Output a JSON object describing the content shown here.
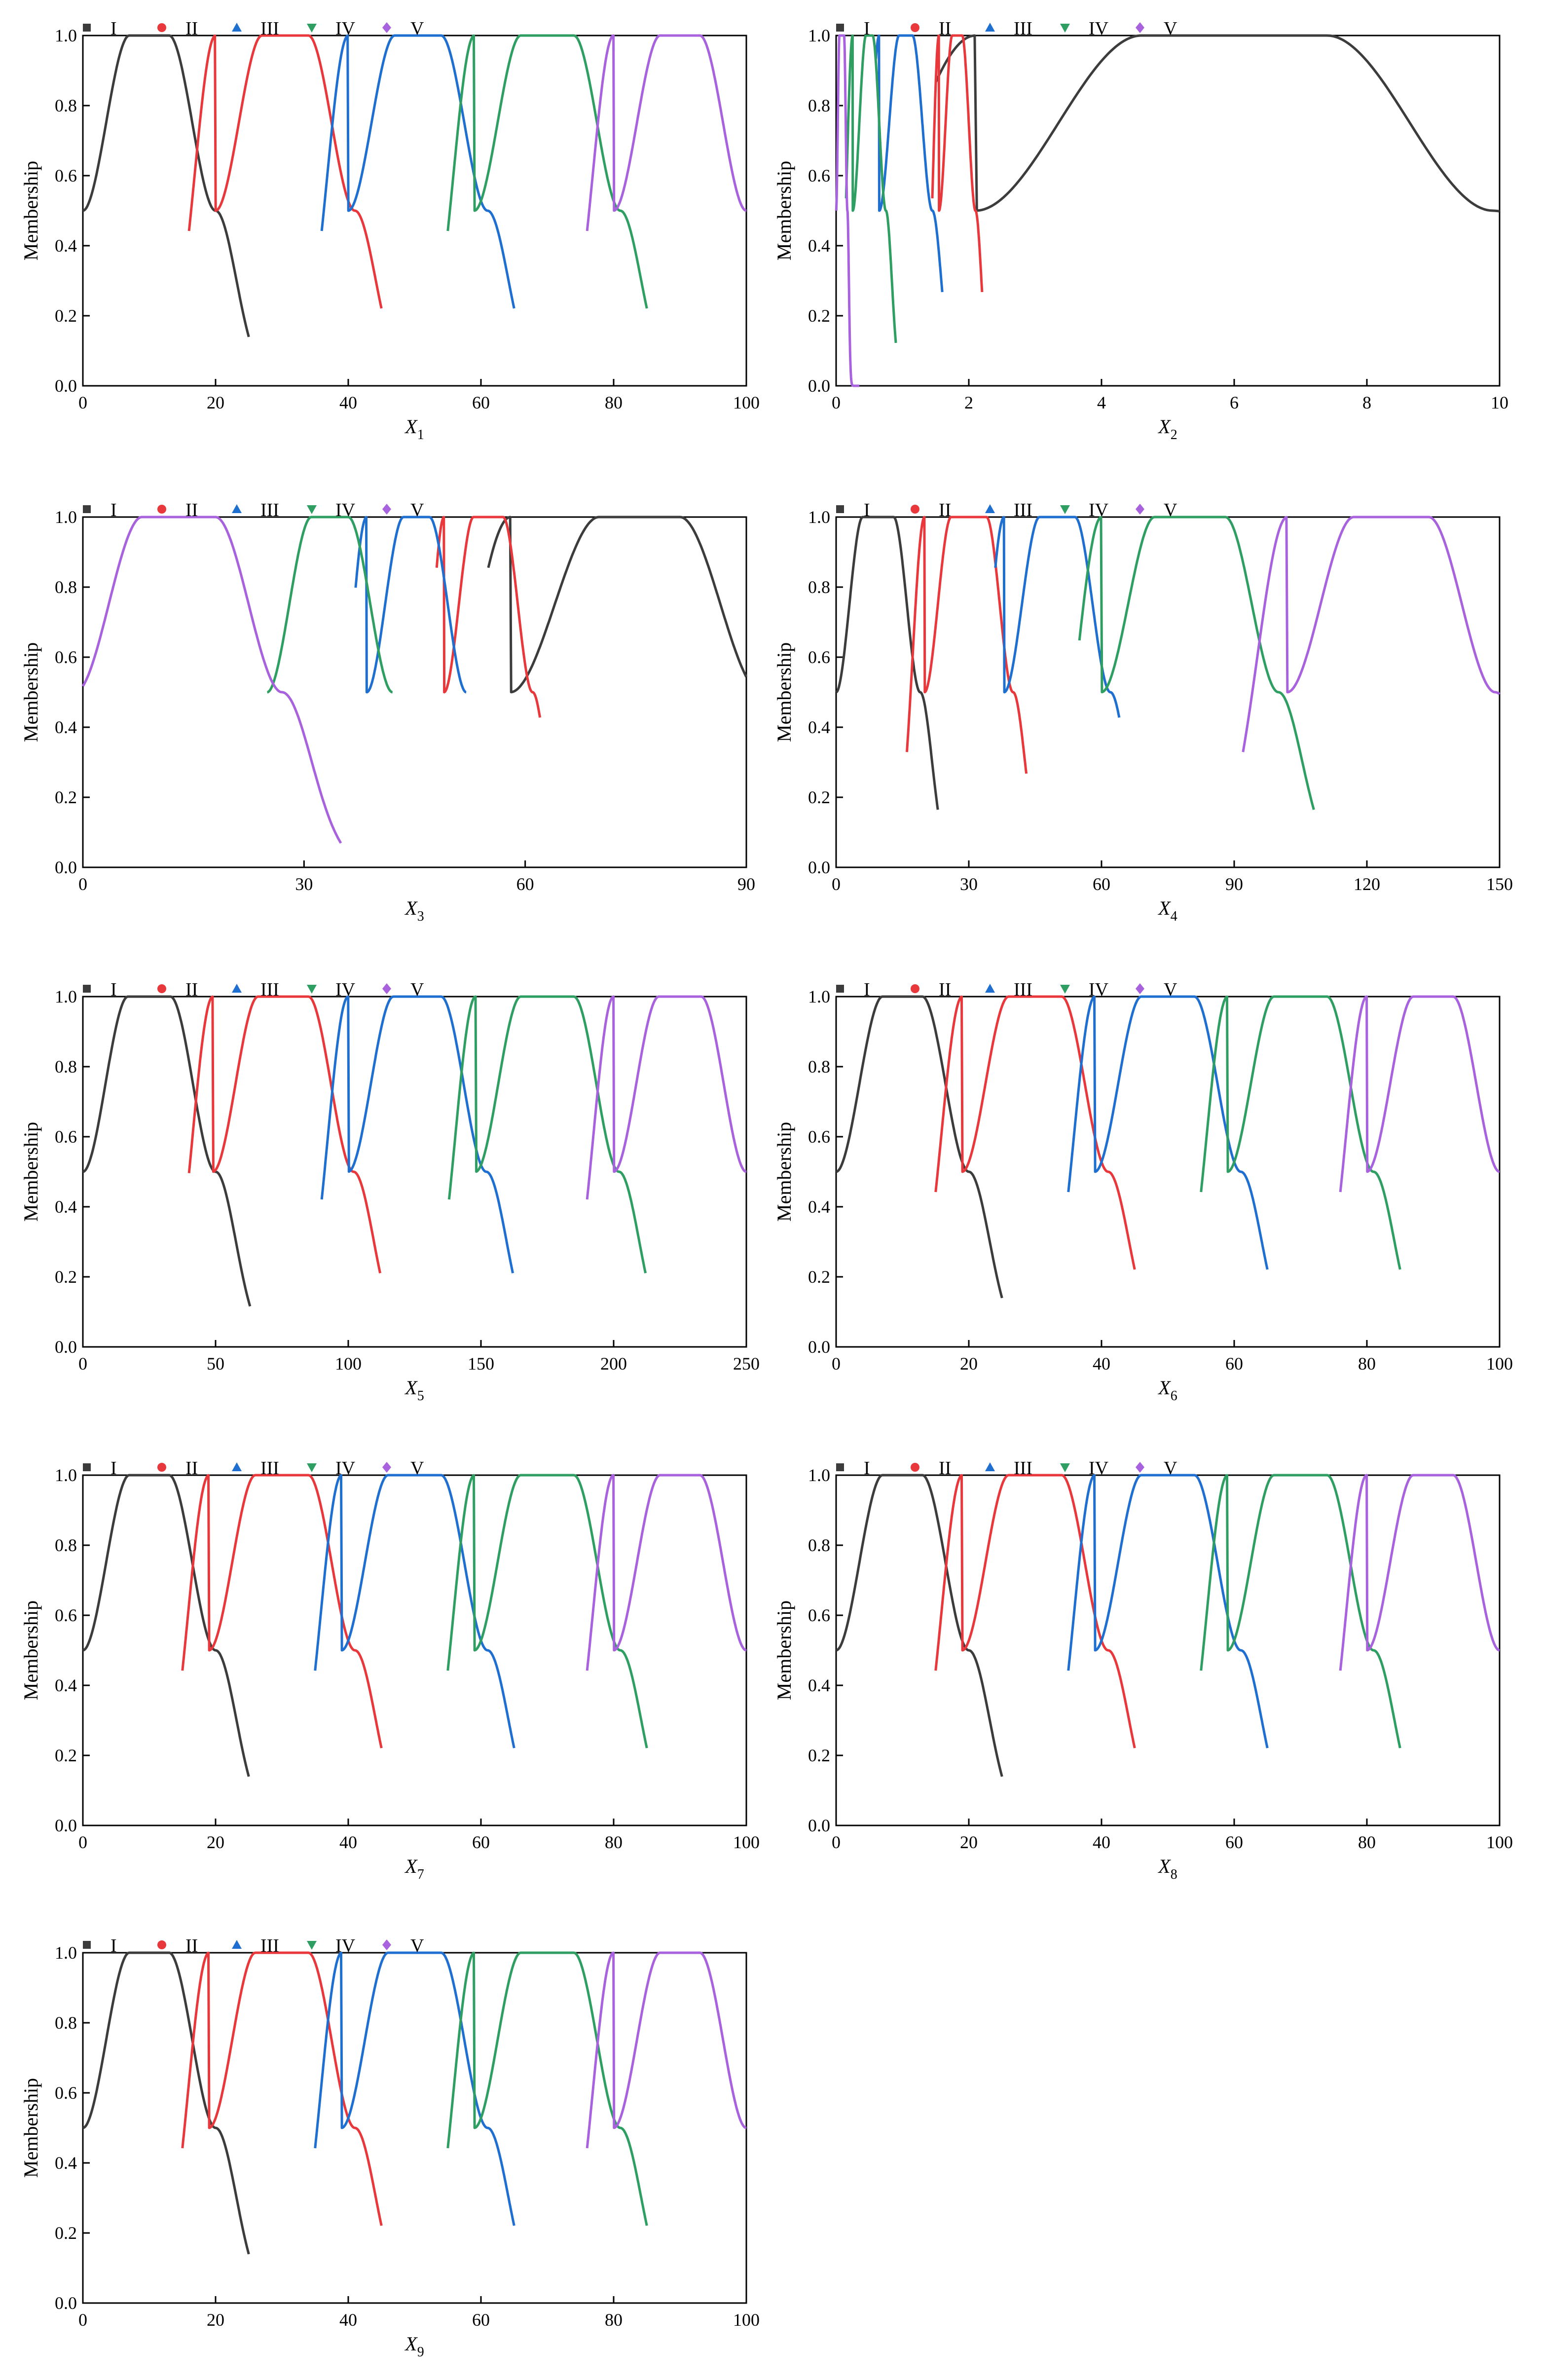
{
  "figure": {
    "ylabel": "Membership",
    "legend_placement": "top-left",
    "series_meta": [
      {
        "name": "I",
        "color": "#3c3c3c",
        "marker": "square"
      },
      {
        "name": "II",
        "color": "#e8383b",
        "marker": "circle"
      },
      {
        "name": "III",
        "color": "#1f6fd1",
        "marker": "triangle-up"
      },
      {
        "name": "IV",
        "color": "#2e9e62",
        "marker": "triangle-down"
      },
      {
        "name": "V",
        "color": "#a862dd",
        "marker": "diamond"
      }
    ]
  },
  "chart_data": [
    {
      "type": "line",
      "xlabel_main": "X",
      "xlabel_sub": "1",
      "ylabel": "Membership",
      "xlim": [
        0,
        100
      ],
      "ylim": [
        0,
        1.0
      ],
      "xticks": [
        0,
        20,
        40,
        60,
        80,
        100
      ],
      "yticks": [
        0,
        0.2,
        0.4,
        0.6,
        0.8,
        1.0
      ],
      "series": [
        {
          "name": "I",
          "a": 7,
          "b": 13,
          "wl": 7,
          "wr": 7,
          "xmin": 0,
          "xmax": 25
        },
        {
          "name": "II",
          "a": 27,
          "b": 34,
          "wl": 7,
          "wr": 7,
          "xmin": 16,
          "xmax": 45
        },
        {
          "name": "III",
          "a": 47,
          "b": 54,
          "wl": 7,
          "wr": 7,
          "xmin": 36,
          "xmax": 65
        },
        {
          "name": "IV",
          "a": 66,
          "b": 74,
          "wl": 7,
          "wr": 7,
          "xmin": 55,
          "xmax": 85
        },
        {
          "name": "V",
          "a": 87,
          "b": 93,
          "wl": 7,
          "wr": 7,
          "xmin": 76,
          "xmax": 100
        }
      ]
    },
    {
      "type": "line",
      "xlabel_main": "X",
      "xlabel_sub": "2",
      "ylabel": "Membership",
      "xlim": [
        0,
        10
      ],
      "ylim": [
        0,
        1.0
      ],
      "xticks": [
        0,
        2,
        4,
        6,
        8,
        10
      ],
      "yticks": [
        0,
        0.2,
        0.4,
        0.6,
        0.8,
        1.0
      ],
      "series": [
        {
          "name": "I",
          "a": 4.6,
          "b": 7.4,
          "wl": 2.5,
          "wr": 2.5,
          "xmin": 1.5,
          "xmax": 10
        },
        {
          "name": "II",
          "a": 1.75,
          "b": 1.9,
          "wl": 0.2,
          "wr": 0.2,
          "xmin": 1.45,
          "xmax": 2.2
        },
        {
          "name": "III",
          "a": 0.95,
          "b": 1.15,
          "wl": 0.3,
          "wr": 0.3,
          "xmin": 0.6,
          "xmax": 1.6
        },
        {
          "name": "IV",
          "a": 0.45,
          "b": 0.55,
          "wl": 0.2,
          "wr": 0.2,
          "xmin": 0.15,
          "xmax": 0.9
        },
        {
          "name": "V",
          "a": 0.05,
          "b": 0.12,
          "wl": 0.05,
          "wr": 0.05,
          "xmin": 0,
          "xmax": 0.35
        }
      ]
    },
    {
      "type": "line",
      "xlabel_main": "X",
      "xlabel_sub": "3",
      "ylabel": "Membership",
      "xlim": [
        0,
        90
      ],
      "ylim": [
        0,
        1.0
      ],
      "xticks": [
        0,
        30,
        60,
        90
      ],
      "yticks": [
        0,
        0.2,
        0.4,
        0.6,
        0.8,
        1.0
      ],
      "series": [
        {
          "name": "I",
          "a": 70,
          "b": 81,
          "wl": 12,
          "wr": 11,
          "xmin": 55,
          "xmax": 90
        },
        {
          "name": "II",
          "a": 53,
          "b": 57,
          "wl": 4,
          "wr": 4,
          "xmin": 48,
          "xmax": 62
        },
        {
          "name": "III",
          "a": 43.5,
          "b": 47,
          "wl": 5,
          "wr": 5,
          "xmin": 37,
          "xmax": 52
        },
        {
          "name": "IV",
          "a": 31,
          "b": 36,
          "wl": 6,
          "wr": 6,
          "xmin": 25,
          "xmax": 42
        },
        {
          "name": "V",
          "a": 8,
          "b": 18,
          "wl": 9,
          "wr": 9,
          "xmin": 0,
          "xmax": 35
        }
      ]
    },
    {
      "type": "line",
      "xlabel_main": "X",
      "xlabel_sub": "4",
      "ylabel": "Membership",
      "xlim": [
        0,
        150
      ],
      "ylim": [
        0,
        1.0
      ],
      "xticks": [
        0,
        30,
        60,
        90,
        120,
        150
      ],
      "yticks": [
        0,
        0.2,
        0.4,
        0.6,
        0.8,
        1.0
      ],
      "series": [
        {
          "name": "I",
          "a": 6,
          "b": 13,
          "wl": 6,
          "wr": 6,
          "xmin": 0,
          "xmax": 23
        },
        {
          "name": "II",
          "a": 26,
          "b": 34,
          "wl": 6,
          "wr": 6,
          "xmin": 16,
          "xmax": 43
        },
        {
          "name": "III",
          "a": 46,
          "b": 54,
          "wl": 8,
          "wr": 8,
          "xmin": 36,
          "xmax": 64
        },
        {
          "name": "IV",
          "a": 72,
          "b": 88,
          "wl": 12,
          "wr": 12,
          "xmin": 55,
          "xmax": 108
        },
        {
          "name": "V",
          "a": 117,
          "b": 134,
          "wl": 15,
          "wr": 15,
          "xmin": 92,
          "xmax": 150
        }
      ]
    },
    {
      "type": "line",
      "xlabel_main": "X",
      "xlabel_sub": "5",
      "ylabel": "Membership",
      "xlim": [
        0,
        250
      ],
      "ylim": [
        0,
        1.0
      ],
      "xticks": [
        0,
        50,
        100,
        150,
        200,
        250
      ],
      "yticks": [
        0,
        0.2,
        0.4,
        0.6,
        0.8,
        1.0
      ],
      "series": [
        {
          "name": "I",
          "a": 17,
          "b": 33,
          "wl": 17,
          "wr": 17,
          "xmin": 0,
          "xmax": 63
        },
        {
          "name": "II",
          "a": 66,
          "b": 85,
          "wl": 17,
          "wr": 17,
          "xmin": 40,
          "xmax": 112
        },
        {
          "name": "III",
          "a": 117,
          "b": 135,
          "wl": 17,
          "wr": 17,
          "xmin": 90,
          "xmax": 162
        },
        {
          "name": "IV",
          "a": 165,
          "b": 185,
          "wl": 17,
          "wr": 17,
          "xmin": 138,
          "xmax": 212
        },
        {
          "name": "V",
          "a": 217,
          "b": 233,
          "wl": 17,
          "wr": 17,
          "xmin": 190,
          "xmax": 250
        }
      ]
    },
    {
      "type": "line",
      "xlabel_main": "X",
      "xlabel_sub": "6",
      "ylabel": "Membership",
      "xlim": [
        0,
        100
      ],
      "ylim": [
        0,
        1.0
      ],
      "xticks": [
        0,
        20,
        40,
        60,
        80,
        100
      ],
      "yticks": [
        0,
        0.2,
        0.4,
        0.6,
        0.8,
        1.0
      ],
      "series": [
        {
          "name": "I",
          "a": 7,
          "b": 13,
          "wl": 7,
          "wr": 7,
          "xmin": 0,
          "xmax": 25
        },
        {
          "name": "II",
          "a": 26,
          "b": 34,
          "wl": 7,
          "wr": 7,
          "xmin": 15,
          "xmax": 45
        },
        {
          "name": "III",
          "a": 46,
          "b": 54,
          "wl": 7,
          "wr": 7,
          "xmin": 35,
          "xmax": 65
        },
        {
          "name": "IV",
          "a": 66,
          "b": 74,
          "wl": 7,
          "wr": 7,
          "xmin": 55,
          "xmax": 85
        },
        {
          "name": "V",
          "a": 87,
          "b": 93,
          "wl": 7,
          "wr": 7,
          "xmin": 76,
          "xmax": 100
        }
      ]
    },
    {
      "type": "line",
      "xlabel_main": "X",
      "xlabel_sub": "7",
      "ylabel": "Membership",
      "xlim": [
        0,
        100
      ],
      "ylim": [
        0,
        1.0
      ],
      "xticks": [
        0,
        20,
        40,
        60,
        80,
        100
      ],
      "yticks": [
        0,
        0.2,
        0.4,
        0.6,
        0.8,
        1.0
      ],
      "series": [
        {
          "name": "I",
          "a": 7,
          "b": 13,
          "wl": 7,
          "wr": 7,
          "xmin": 0,
          "xmax": 25
        },
        {
          "name": "II",
          "a": 26,
          "b": 34,
          "wl": 7,
          "wr": 7,
          "xmin": 15,
          "xmax": 45
        },
        {
          "name": "III",
          "a": 46,
          "b": 54,
          "wl": 7,
          "wr": 7,
          "xmin": 35,
          "xmax": 65
        },
        {
          "name": "IV",
          "a": 66,
          "b": 74,
          "wl": 7,
          "wr": 7,
          "xmin": 55,
          "xmax": 85
        },
        {
          "name": "V",
          "a": 87,
          "b": 93,
          "wl": 7,
          "wr": 7,
          "xmin": 76,
          "xmax": 100
        }
      ]
    },
    {
      "type": "line",
      "xlabel_main": "X",
      "xlabel_sub": "8",
      "ylabel": "Membership",
      "xlim": [
        0,
        100
      ],
      "ylim": [
        0,
        1.0
      ],
      "xticks": [
        0,
        20,
        40,
        60,
        80,
        100
      ],
      "yticks": [
        0,
        0.2,
        0.4,
        0.6,
        0.8,
        1.0
      ],
      "series": [
        {
          "name": "I",
          "a": 7,
          "b": 13,
          "wl": 7,
          "wr": 7,
          "xmin": 0,
          "xmax": 25
        },
        {
          "name": "II",
          "a": 26,
          "b": 34,
          "wl": 7,
          "wr": 7,
          "xmin": 15,
          "xmax": 45
        },
        {
          "name": "III",
          "a": 46,
          "b": 54,
          "wl": 7,
          "wr": 7,
          "xmin": 35,
          "xmax": 65
        },
        {
          "name": "IV",
          "a": 66,
          "b": 74,
          "wl": 7,
          "wr": 7,
          "xmin": 55,
          "xmax": 85
        },
        {
          "name": "V",
          "a": 87,
          "b": 93,
          "wl": 7,
          "wr": 7,
          "xmin": 76,
          "xmax": 100
        }
      ]
    },
    {
      "type": "line",
      "xlabel_main": "X",
      "xlabel_sub": "9",
      "ylabel": "Membership",
      "xlim": [
        0,
        100
      ],
      "ylim": [
        0,
        1.0
      ],
      "xticks": [
        0,
        20,
        40,
        60,
        80,
        100
      ],
      "yticks": [
        0,
        0.2,
        0.4,
        0.6,
        0.8,
        1.0
      ],
      "series": [
        {
          "name": "I",
          "a": 7,
          "b": 13,
          "wl": 7,
          "wr": 7,
          "xmin": 0,
          "xmax": 25
        },
        {
          "name": "II",
          "a": 26,
          "b": 34,
          "wl": 7,
          "wr": 7,
          "xmin": 15,
          "xmax": 45
        },
        {
          "name": "III",
          "a": 46,
          "b": 54,
          "wl": 7,
          "wr": 7,
          "xmin": 35,
          "xmax": 65
        },
        {
          "name": "IV",
          "a": 66,
          "b": 74,
          "wl": 7,
          "wr": 7,
          "xmin": 55,
          "xmax": 85
        },
        {
          "name": "V",
          "a": 87,
          "b": 93,
          "wl": 7,
          "wr": 7,
          "xmin": 76,
          "xmax": 100
        }
      ]
    }
  ]
}
